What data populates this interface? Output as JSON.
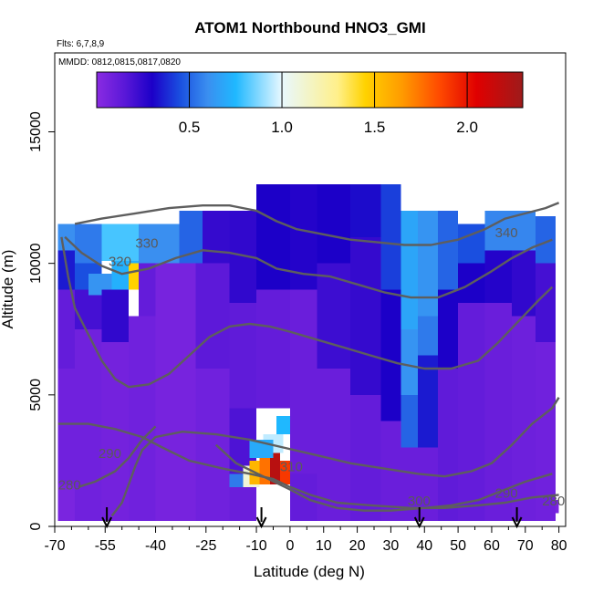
{
  "chart_data": {
    "type": "heatmap",
    "title": "ATOM1 Northbound HNO3_GMI",
    "subtitle_lines": [
      "Flts: 6,7,8,9",
      "MMDD: 0812,0815,0817,0820"
    ],
    "xlabel": "Latitude (deg N)",
    "ylabel": "Altitude (m)",
    "xlim": [
      -70,
      82
    ],
    "ylim": [
      0,
      18000
    ],
    "x_tick_labels": [
      "-70",
      "-55",
      "-40",
      "-25",
      "-10",
      "0",
      "10",
      "20",
      "30",
      "40",
      "50",
      "60",
      "70",
      "80"
    ],
    "x_ticks": [
      -70,
      -55,
      -40,
      -25,
      -10,
      0,
      10,
      20,
      30,
      40,
      50,
      60,
      70,
      80
    ],
    "x_minor_ticks": [
      -65,
      -60,
      -50,
      -45,
      -35,
      -30,
      -20,
      -15,
      -5,
      5,
      15,
      25,
      35,
      45,
      55,
      65,
      75
    ],
    "y_tick_labels": [
      "0",
      "5000",
      "10000",
      "15000"
    ],
    "y_ticks": [
      0,
      5000,
      10000,
      15000
    ],
    "colorbar": {
      "min": 0.0,
      "max": 2.3,
      "tick_labels": [
        "0.5",
        "1.0",
        "1.5",
        "2.0"
      ],
      "ticks": [
        0.5,
        1.0,
        1.5,
        2.0
      ],
      "stops": [
        {
          "v": 0.0,
          "c": "#8a2be2"
        },
        {
          "v": 0.15,
          "c": "#5a18d8"
        },
        {
          "v": 0.3,
          "c": "#1c00c8"
        },
        {
          "v": 0.45,
          "c": "#1a4fe0"
        },
        {
          "v": 0.6,
          "c": "#3a8ff0"
        },
        {
          "v": 0.75,
          "c": "#1fb8ff"
        },
        {
          "v": 1.0,
          "c": "#e8f8ff"
        },
        {
          "v": 1.3,
          "c": "#fff08a"
        },
        {
          "v": 1.45,
          "c": "#ffd200"
        },
        {
          "v": 1.65,
          "c": "#ff9a00"
        },
        {
          "v": 1.85,
          "c": "#ff4a00"
        },
        {
          "v": 2.05,
          "c": "#e00000"
        },
        {
          "v": 2.3,
          "c": "#9e1b1b"
        }
      ]
    },
    "cells": [
      {
        "x0": -69,
        "x1": -64,
        "y0": 200,
        "y1": 1600,
        "v": 0.05
      },
      {
        "x0": -69,
        "x1": -64,
        "y0": 1600,
        "y1": 6000,
        "v": 0.08
      },
      {
        "x0": -69,
        "x1": -64,
        "y0": 6000,
        "y1": 9000,
        "v": 0.12
      },
      {
        "x0": -69,
        "x1": -64,
        "y0": 9000,
        "y1": 10500,
        "v": 0.35
      },
      {
        "x0": -69,
        "x1": -64,
        "y0": 10500,
        "y1": 11500,
        "v": 0.6
      },
      {
        "x0": -64,
        "x1": -56,
        "y0": 200,
        "y1": 7500,
        "v": 0.08
      },
      {
        "x0": -64,
        "x1": -56,
        "y0": 7500,
        "y1": 9000,
        "v": 0.2
      },
      {
        "x0": -64,
        "x1": -56,
        "y0": 9000,
        "y1": 10000,
        "v": 0.45
      },
      {
        "x0": -64,
        "x1": -56,
        "y0": 10000,
        "y1": 11500,
        "v": 0.55
      },
      {
        "x0": -60,
        "x1": -53,
        "y0": 8800,
        "y1": 9600,
        "v": 0.62
      },
      {
        "x0": -56,
        "x1": -48,
        "y0": 200,
        "y1": 7000,
        "v": 0.07
      },
      {
        "x0": -56,
        "x1": -48,
        "y0": 7000,
        "y1": 9000,
        "v": 0.25
      },
      {
        "x0": -53,
        "x1": -45,
        "y0": 9000,
        "y1": 10100,
        "v": 0.72
      },
      {
        "x0": -48,
        "x1": -45,
        "y0": 9000,
        "y1": 10000,
        "v": 1.45
      },
      {
        "x0": -56,
        "x1": -45,
        "y0": 10100,
        "y1": 11500,
        "v": 0.8
      },
      {
        "x0": -48,
        "x1": -40,
        "y0": 200,
        "y1": 8000,
        "v": 0.08
      },
      {
        "x0": -45,
        "x1": -40,
        "y0": 8000,
        "y1": 10000,
        "v": 0.12
      },
      {
        "x0": -45,
        "x1": -33,
        "y0": 10000,
        "y1": 11500,
        "v": 0.6
      },
      {
        "x0": -40,
        "x1": -28,
        "y0": 200,
        "y1": 10000,
        "v": 0.06
      },
      {
        "x0": -33,
        "x1": -26,
        "y0": 10000,
        "y1": 12000,
        "v": 0.5
      },
      {
        "x0": -28,
        "x1": -18,
        "y0": 200,
        "y1": 6000,
        "v": 0.08
      },
      {
        "x0": -28,
        "x1": -18,
        "y0": 6000,
        "y1": 10000,
        "v": 0.14
      },
      {
        "x0": -26,
        "x1": -18,
        "y0": 10000,
        "y1": 12000,
        "v": 0.24
      },
      {
        "x0": -18,
        "x1": -10,
        "y0": 200,
        "y1": 2000,
        "v": 0.1
      },
      {
        "x0": -18,
        "x1": -10,
        "y0": 2000,
        "y1": 4500,
        "v": 0.18
      },
      {
        "x0": -18,
        "x1": -10,
        "y0": 4500,
        "y1": 8500,
        "v": 0.13
      },
      {
        "x0": -18,
        "x1": -10,
        "y0": 8500,
        "y1": 12000,
        "v": 0.25
      },
      {
        "x0": -10,
        "x1": 0,
        "y0": 4500,
        "y1": 9000,
        "v": 0.12
      },
      {
        "x0": -10,
        "x1": 0,
        "y0": 9000,
        "y1": 13000,
        "v": 0.3
      },
      {
        "x0": -18,
        "x1": -12,
        "y0": 1500,
        "y1": 2000,
        "v": 0.55
      },
      {
        "x0": -14,
        "x1": -9,
        "y0": 1500,
        "y1": 2300,
        "v": 1.1
      },
      {
        "x0": -12,
        "x1": -8,
        "y0": 1600,
        "y1": 2500,
        "v": 1.55
      },
      {
        "x0": -9,
        "x1": -6,
        "y0": 1600,
        "y1": 2600,
        "v": 1.75
      },
      {
        "x0": -6,
        "x1": -3,
        "y0": 1600,
        "y1": 2800,
        "v": 2.2
      },
      {
        "x0": -3,
        "x1": 0,
        "y0": 1600,
        "y1": 2500,
        "v": 1.9
      },
      {
        "x0": -8,
        "x1": -2,
        "y0": 2800,
        "y1": 3500,
        "v": 0.95
      },
      {
        "x0": -4,
        "x1": 1,
        "y0": 3500,
        "y1": 4200,
        "v": 0.75
      },
      {
        "x0": -12,
        "x1": -5,
        "y0": 2600,
        "y1": 3300,
        "v": 0.7
      },
      {
        "x0": 0,
        "x1": 8,
        "y0": 200,
        "y1": 2000,
        "v": 0.12
      },
      {
        "x0": 0,
        "x1": 8,
        "y0": 2000,
        "y1": 9000,
        "v": 0.1
      },
      {
        "x0": 0,
        "x1": 8,
        "y0": 9000,
        "y1": 13000,
        "v": 0.28
      },
      {
        "x0": 8,
        "x1": 18,
        "y0": 200,
        "y1": 6000,
        "v": 0.1
      },
      {
        "x0": 8,
        "x1": 18,
        "y0": 6000,
        "y1": 10000,
        "v": 0.22
      },
      {
        "x0": 8,
        "x1": 18,
        "y0": 10000,
        "y1": 13000,
        "v": 0.3
      },
      {
        "x0": 18,
        "x1": 27,
        "y0": 200,
        "y1": 5000,
        "v": 0.12
      },
      {
        "x0": 18,
        "x1": 27,
        "y0": 5000,
        "y1": 11000,
        "v": 0.24
      },
      {
        "x0": 18,
        "x1": 27,
        "y0": 11000,
        "y1": 13000,
        "v": 0.32
      },
      {
        "x0": 27,
        "x1": 33,
        "y0": 200,
        "y1": 4000,
        "v": 0.1
      },
      {
        "x0": 27,
        "x1": 33,
        "y0": 4000,
        "y1": 9000,
        "v": 0.3
      },
      {
        "x0": 27,
        "x1": 33,
        "y0": 9000,
        "y1": 13000,
        "v": 0.42
      },
      {
        "x0": 33,
        "x1": 38,
        "y0": 200,
        "y1": 3000,
        "v": 0.1
      },
      {
        "x0": 33,
        "x1": 38,
        "y0": 3000,
        "y1": 5000,
        "v": 0.5
      },
      {
        "x0": 33,
        "x1": 38,
        "y0": 5000,
        "y1": 7500,
        "v": 0.62
      },
      {
        "x0": 33,
        "x1": 38,
        "y0": 7500,
        "y1": 12000,
        "v": 0.68
      },
      {
        "x0": 38,
        "x1": 44,
        "y0": 200,
        "y1": 3000,
        "v": 0.1
      },
      {
        "x0": 38,
        "x1": 44,
        "y0": 3000,
        "y1": 6500,
        "v": 0.35
      },
      {
        "x0": 38,
        "x1": 44,
        "y0": 6500,
        "y1": 8000,
        "v": 0.55
      },
      {
        "x0": 38,
        "x1": 44,
        "y0": 8000,
        "y1": 12000,
        "v": 0.62
      },
      {
        "x0": 44,
        "x1": 50,
        "y0": 200,
        "y1": 6000,
        "v": 0.13
      },
      {
        "x0": 44,
        "x1": 50,
        "y0": 6000,
        "y1": 9000,
        "v": 0.3
      },
      {
        "x0": 44,
        "x1": 50,
        "y0": 9000,
        "y1": 12000,
        "v": 0.5
      },
      {
        "x0": 50,
        "x1": 58,
        "y0": 200,
        "y1": 8500,
        "v": 0.12
      },
      {
        "x0": 50,
        "x1": 58,
        "y0": 8500,
        "y1": 10000,
        "v": 0.3
      },
      {
        "x0": 50,
        "x1": 58,
        "y0": 10000,
        "y1": 11500,
        "v": 0.45
      },
      {
        "x0": 58,
        "x1": 66,
        "y0": 200,
        "y1": 8500,
        "v": 0.1
      },
      {
        "x0": 58,
        "x1": 66,
        "y0": 8500,
        "y1": 10500,
        "v": 0.28
      },
      {
        "x0": 58,
        "x1": 66,
        "y0": 10500,
        "y1": 12000,
        "v": 0.58
      },
      {
        "x0": 66,
        "x1": 73,
        "y0": 200,
        "y1": 8000,
        "v": 0.09
      },
      {
        "x0": 66,
        "x1": 73,
        "y0": 8000,
        "y1": 10500,
        "v": 0.25
      },
      {
        "x0": 66,
        "x1": 73,
        "y0": 10500,
        "y1": 12000,
        "v": 0.58
      },
      {
        "x0": 73,
        "x1": 79,
        "y0": 200,
        "y1": 7000,
        "v": 0.08
      },
      {
        "x0": 73,
        "x1": 79,
        "y0": 7000,
        "y1": 10000,
        "v": 0.2
      },
      {
        "x0": 73,
        "x1": 79,
        "y0": 10000,
        "y1": 11800,
        "v": 0.5
      },
      {
        "x0": 79,
        "x1": 80,
        "y0": 500,
        "y1": 1000,
        "v": 0.05
      }
    ],
    "contours": [
      {
        "label": "280",
        "points": [
          [
            -69,
            3900
          ],
          [
            -60,
            3900
          ],
          [
            -52,
            3700
          ],
          [
            -44,
            3400
          ],
          [
            -38,
            3000
          ],
          [
            -30,
            2500
          ],
          [
            -20,
            2200
          ],
          [
            -12,
            2000
          ],
          [
            -5,
            1800
          ],
          [
            0,
            1500
          ],
          [
            6,
            1200
          ],
          [
            14,
            900
          ],
          [
            24,
            800
          ],
          [
            36,
            700
          ],
          [
            46,
            700
          ],
          [
            56,
            800
          ],
          [
            64,
            900
          ],
          [
            72,
            1100
          ],
          [
            80,
            1200
          ]
        ]
      },
      {
        "label": "290",
        "points": [
          [
            -63,
            1500
          ],
          [
            -58,
            1700
          ],
          [
            -52,
            2100
          ],
          [
            -48,
            2600
          ],
          [
            -44,
            3300
          ],
          [
            -40,
            3800
          ]
        ]
      },
      {
        "label": "300",
        "points": [
          [
            -53,
            400
          ],
          [
            -50,
            900
          ],
          [
            -48,
            1600
          ],
          [
            -46,
            2300
          ],
          [
            -44,
            2900
          ],
          [
            -40,
            3400
          ],
          [
            -32,
            3600
          ],
          [
            -22,
            3500
          ],
          [
            -12,
            3300
          ],
          [
            -2,
            3000
          ],
          [
            8,
            2700
          ],
          [
            18,
            2400
          ],
          [
            28,
            2200
          ],
          [
            38,
            2000
          ],
          [
            46,
            1900
          ],
          [
            54,
            2100
          ],
          [
            60,
            2400
          ],
          [
            66,
            3100
          ],
          [
            72,
            3900
          ],
          [
            78,
            4500
          ],
          [
            80,
            4900
          ]
        ]
      },
      {
        "label": "310",
        "points": [
          [
            -22,
            3100
          ],
          [
            -16,
            2400
          ],
          [
            -8,
            1900
          ],
          [
            0,
            1400
          ],
          [
            6,
            1000
          ],
          [
            14,
            700
          ],
          [
            22,
            600
          ],
          [
            30,
            600
          ],
          [
            40,
            700
          ],
          [
            48,
            800
          ],
          [
            56,
            1000
          ],
          [
            64,
            1400
          ],
          [
            70,
            1700
          ],
          [
            78,
            2000
          ]
        ]
      },
      {
        "label": "320",
        "points": [
          [
            -68,
            11000
          ],
          [
            -66,
            9500
          ],
          [
            -64,
            8300
          ],
          [
            -60,
            7300
          ],
          [
            -56,
            6300
          ],
          [
            -52,
            5600
          ],
          [
            -48,
            5300
          ],
          [
            -42,
            5400
          ],
          [
            -36,
            5800
          ],
          [
            -30,
            6500
          ],
          [
            -24,
            7200
          ],
          [
            -18,
            7600
          ],
          [
            -12,
            7700
          ],
          [
            -6,
            7600
          ],
          [
            0,
            7400
          ],
          [
            8,
            7100
          ],
          [
            16,
            6800
          ],
          [
            24,
            6500
          ],
          [
            32,
            6200
          ],
          [
            40,
            6000
          ],
          [
            48,
            6000
          ],
          [
            56,
            6300
          ],
          [
            62,
            7000
          ],
          [
            68,
            7800
          ],
          [
            74,
            8600
          ],
          [
            78,
            9100
          ]
        ]
      },
      {
        "label": "330",
        "points": [
          [
            -67,
            11000
          ],
          [
            -62,
            10400
          ],
          [
            -56,
            9900
          ],
          [
            -50,
            9600
          ],
          [
            -42,
            9800
          ],
          [
            -34,
            10200
          ],
          [
            -26,
            10500
          ],
          [
            -18,
            10400
          ],
          [
            -10,
            10200
          ],
          [
            -4,
            9800
          ],
          [
            4,
            9600
          ],
          [
            12,
            9500
          ],
          [
            20,
            9200
          ],
          [
            28,
            8900
          ],
          [
            36,
            8700
          ],
          [
            44,
            8700
          ],
          [
            52,
            9100
          ],
          [
            60,
            9700
          ],
          [
            66,
            10200
          ],
          [
            72,
            10600
          ],
          [
            78,
            10900
          ]
        ]
      },
      {
        "label": "340",
        "points": [
          [
            -64,
            11500
          ],
          [
            -56,
            11700
          ],
          [
            -46,
            11900
          ],
          [
            -36,
            12100
          ],
          [
            -26,
            12200
          ],
          [
            -18,
            12200
          ],
          [
            -10,
            12000
          ],
          [
            -4,
            11600
          ],
          [
            2,
            11300
          ],
          [
            10,
            11100
          ],
          [
            18,
            10900
          ],
          [
            26,
            10800
          ],
          [
            34,
            10700
          ],
          [
            42,
            10700
          ],
          [
            50,
            10900
          ],
          [
            58,
            11300
          ],
          [
            64,
            11700
          ],
          [
            70,
            11900
          ],
          [
            76,
            12100
          ],
          [
            80,
            12300
          ]
        ]
      }
    ],
    "contour_labels": [
      {
        "text": "330",
        "x": -46,
        "y": 10600
      },
      {
        "text": "320",
        "x": -54,
        "y": 9900
      },
      {
        "text": "340",
        "x": 61,
        "y": 11000
      },
      {
        "text": "290",
        "x": -57,
        "y": 2600
      },
      {
        "text": "280",
        "x": -69,
        "y": 1400
      },
      {
        "text": "310",
        "x": -3,
        "y": 2100
      },
      {
        "text": "300",
        "x": 35,
        "y": 800
      },
      {
        "text": "290",
        "x": 61,
        "y": 1100
      },
      {
        "text": "280",
        "x": 75,
        "y": 800
      }
    ],
    "flight_markers": [
      -54.5,
      -8.5,
      38.5,
      67.5
    ]
  }
}
